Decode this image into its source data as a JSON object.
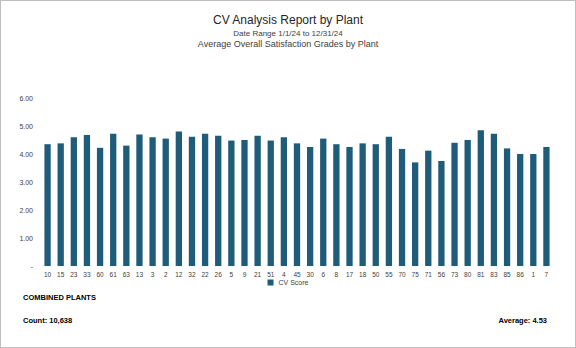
{
  "chart_data": {
    "type": "bar",
    "title": "CV Analysis Report by Plant",
    "subtitle": "Date Range 1/1/24 to 12/31/24",
    "annotations": [
      "Average Overall Satisfaction Grades by Plant",
      "COMBINED PLANTS",
      "Count: 10,638",
      "Average: 4.53"
    ],
    "categories": [
      "10",
      "15",
      "23",
      "33",
      "60",
      "61",
      "63",
      "13",
      "3",
      "2",
      "12",
      "32",
      "22",
      "26",
      "5",
      "9",
      "21",
      "51",
      "4",
      "45",
      "30",
      "6",
      "8",
      "17",
      "18",
      "50",
      "55",
      "70",
      "75",
      "71",
      "56",
      "73",
      "80",
      "81",
      "83",
      "85",
      "86",
      "1",
      "7"
    ],
    "series": [
      {
        "name": "CV Score",
        "color": "#1f5c7a",
        "values": [
          4.35,
          4.38,
          4.6,
          4.68,
          4.22,
          4.72,
          4.3,
          4.7,
          4.6,
          4.55,
          4.8,
          4.62,
          4.72,
          4.65,
          4.48,
          4.5,
          4.65,
          4.48,
          4.6,
          4.38,
          4.25,
          4.55,
          4.35,
          4.25,
          4.38,
          4.35,
          4.62,
          4.18,
          3.7,
          4.12,
          3.75,
          4.4,
          4.5,
          4.85,
          4.72,
          4.2,
          4.0,
          4.0,
          4.25
        ]
      }
    ],
    "ylim": [
      0,
      6
    ],
    "yticks": [
      {
        "value": 0,
        "label": "-"
      },
      {
        "value": 1,
        "label": "1.00"
      },
      {
        "value": 2,
        "label": "2.00"
      },
      {
        "value": 3,
        "label": "3.00"
      },
      {
        "value": 4,
        "label": "4.00"
      },
      {
        "value": 5,
        "label": "5.00"
      },
      {
        "value": 6,
        "label": "6.00"
      }
    ],
    "grid": false,
    "legend": "bottom"
  }
}
